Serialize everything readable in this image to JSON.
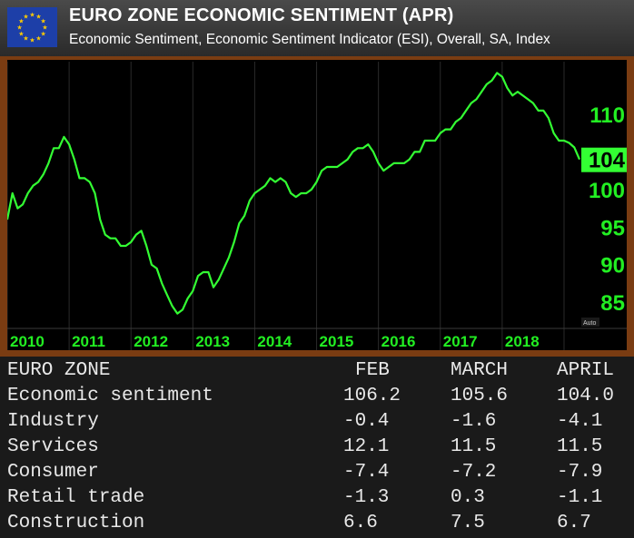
{
  "header": {
    "title": "EURO ZONE ECONOMIC SENTIMENT (APR)",
    "subtitle": "Economic Sentiment, Economic Sentiment Indicator (ESI), Overall, SA, Index"
  },
  "flag_icon": "eu-flag-icon",
  "colors": {
    "line": "#33ff33",
    "axis_text": "#22ee22",
    "badge": "#33ff33",
    "panel": "#000000",
    "frame": "#7a3c12"
  },
  "chart_data": {
    "type": "line",
    "title": "",
    "xlabel": "",
    "ylabel": "",
    "x_tick_labels": [
      "2010",
      "2011",
      "2012",
      "2013",
      "2014",
      "2015",
      "2016",
      "2017",
      "2018"
    ],
    "y_tick_labels": [
      "85",
      "90",
      "95",
      "100",
      "110"
    ],
    "ylim": [
      82,
      117
    ],
    "y_axis_position": "right",
    "grid": true,
    "last_value_badge": "104",
    "scale_label": "Auto",
    "series": [
      {
        "x": [
          "2010-01",
          "2010-02",
          "2010-03",
          "2010-04",
          "2010-05",
          "2010-06",
          "2010-07",
          "2010-08",
          "2010-09",
          "2010-10",
          "2010-11",
          "2010-12",
          "2011-01",
          "2011-02",
          "2011-03",
          "2011-04",
          "2011-05",
          "2011-06",
          "2011-07",
          "2011-08",
          "2011-09",
          "2011-10",
          "2011-11",
          "2011-12",
          "2012-01",
          "2012-02",
          "2012-03",
          "2012-04",
          "2012-05",
          "2012-06",
          "2012-07",
          "2012-08",
          "2012-09",
          "2012-10",
          "2012-11",
          "2012-12",
          "2013-01",
          "2013-02",
          "2013-03",
          "2013-04",
          "2013-05",
          "2013-06",
          "2013-07",
          "2013-08",
          "2013-09",
          "2013-10",
          "2013-11",
          "2013-12",
          "2014-01",
          "2014-02",
          "2014-03",
          "2014-04",
          "2014-05",
          "2014-06",
          "2014-07",
          "2014-08",
          "2014-09",
          "2014-10",
          "2014-11",
          "2014-12",
          "2015-01",
          "2015-02",
          "2015-03",
          "2015-04",
          "2015-05",
          "2015-06",
          "2015-07",
          "2015-08",
          "2015-09",
          "2015-10",
          "2015-11",
          "2015-12",
          "2016-01",
          "2016-02",
          "2016-03",
          "2016-04",
          "2016-05",
          "2016-06",
          "2016-07",
          "2016-08",
          "2016-09",
          "2016-10",
          "2016-11",
          "2016-12",
          "2017-01",
          "2017-02",
          "2017-03",
          "2017-04",
          "2017-05",
          "2017-06",
          "2017-07",
          "2017-08",
          "2017-09",
          "2017-10",
          "2017-11",
          "2017-12",
          "2018-01",
          "2018-02",
          "2018-03",
          "2018-04",
          "2018-05",
          "2018-06",
          "2018-07",
          "2018-08",
          "2018-09",
          "2018-10",
          "2018-11",
          "2018-12",
          "2019-01",
          "2019-02",
          "2019-03",
          "2019-04"
        ],
        "values": [
          96.0,
          99.5,
          97.5,
          98.0,
          99.5,
          100.5,
          101.0,
          102.0,
          103.5,
          105.5,
          105.5,
          107.0,
          106.0,
          104.0,
          101.5,
          101.5,
          101.0,
          99.5,
          96.0,
          94.0,
          93.5,
          93.5,
          92.5,
          92.5,
          93.0,
          94.0,
          94.5,
          92.5,
          90.0,
          89.5,
          87.5,
          86.0,
          84.5,
          83.5,
          84.0,
          85.5,
          86.5,
          88.5,
          89.0,
          89.0,
          87.0,
          88.0,
          89.5,
          91.0,
          93.0,
          95.5,
          96.5,
          98.5,
          99.5,
          100.0,
          100.5,
          101.5,
          101.0,
          101.5,
          101.0,
          99.5,
          99.0,
          99.5,
          99.5,
          100.0,
          101.0,
          102.5,
          103.0,
          103.0,
          103.0,
          103.5,
          104.0,
          105.0,
          105.5,
          105.5,
          106.0,
          105.0,
          103.5,
          102.5,
          103.0,
          103.5,
          103.5,
          103.5,
          104.0,
          105.0,
          105.0,
          106.5,
          106.5,
          106.5,
          107.5,
          108.0,
          108.0,
          109.0,
          109.5,
          110.5,
          111.5,
          112.0,
          113.0,
          114.0,
          114.5,
          115.5,
          115.0,
          113.5,
          112.5,
          113.0,
          112.5,
          112.0,
          111.5,
          110.5,
          110.5,
          109.5,
          107.5,
          106.5,
          106.5,
          106.2,
          105.6,
          104.0
        ]
      }
    ]
  },
  "table": {
    "headers": [
      "EURO ZONE",
      "FEB",
      "MARCH",
      "APRIL"
    ],
    "rows": [
      [
        "Economic sentiment",
        "106.2",
        "105.6",
        "104.0"
      ],
      [
        "Industry",
        "-0.4",
        "-1.6",
        "-4.1"
      ],
      [
        "Services",
        "12.1",
        "11.5",
        "11.5"
      ],
      [
        "Consumer",
        "-7.4",
        "-7.2",
        "-7.9"
      ],
      [
        "Retail trade",
        "-1.3",
        "0.3",
        "-1.1"
      ],
      [
        "Construction",
        "6.6",
        "7.5",
        "6.7"
      ]
    ]
  }
}
